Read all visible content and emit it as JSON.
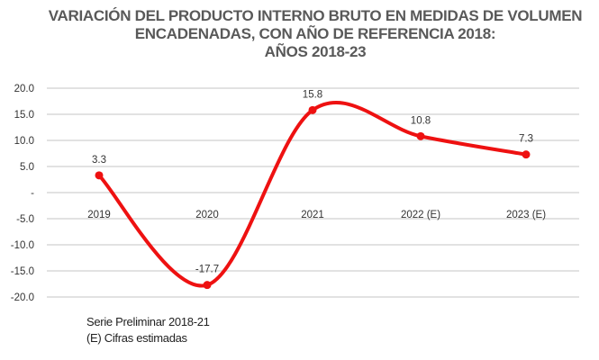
{
  "chart_data": {
    "type": "line",
    "title": [
      "VARIACIÓN DEL PRODUCTO INTERNO BRUTO EN MEDIDAS DE VOLUMEN",
      "ENCADENADAS,  CON AÑO DE REFERENCIA 2018:",
      "AÑOS 2018-23"
    ],
    "categories": [
      "2019",
      "2020",
      "2021",
      "2022 (E)",
      "2023 (E)"
    ],
    "values": [
      3.3,
      -17.7,
      15.8,
      10.8,
      7.3
    ],
    "data_labels": [
      "3.3",
      "-17.7",
      "15.8",
      "10.8",
      "7.3"
    ],
    "ylim": [
      -20,
      20
    ],
    "yticks": [
      20,
      15,
      10,
      5,
      0,
      -5,
      -10,
      -15,
      -20
    ],
    "ytick_labels": [
      "20.0",
      "15.0",
      "10.0",
      "5.0",
      "-",
      "-5.0",
      "-10.0",
      "-15.0",
      "-20.0"
    ],
    "smooth": true,
    "grid": true,
    "line_color": "#ee1111",
    "grid_color": "#d9d9d9",
    "notes": [
      "Serie Preliminar 2018-21",
      "(E) Cifras estimadas"
    ]
  }
}
